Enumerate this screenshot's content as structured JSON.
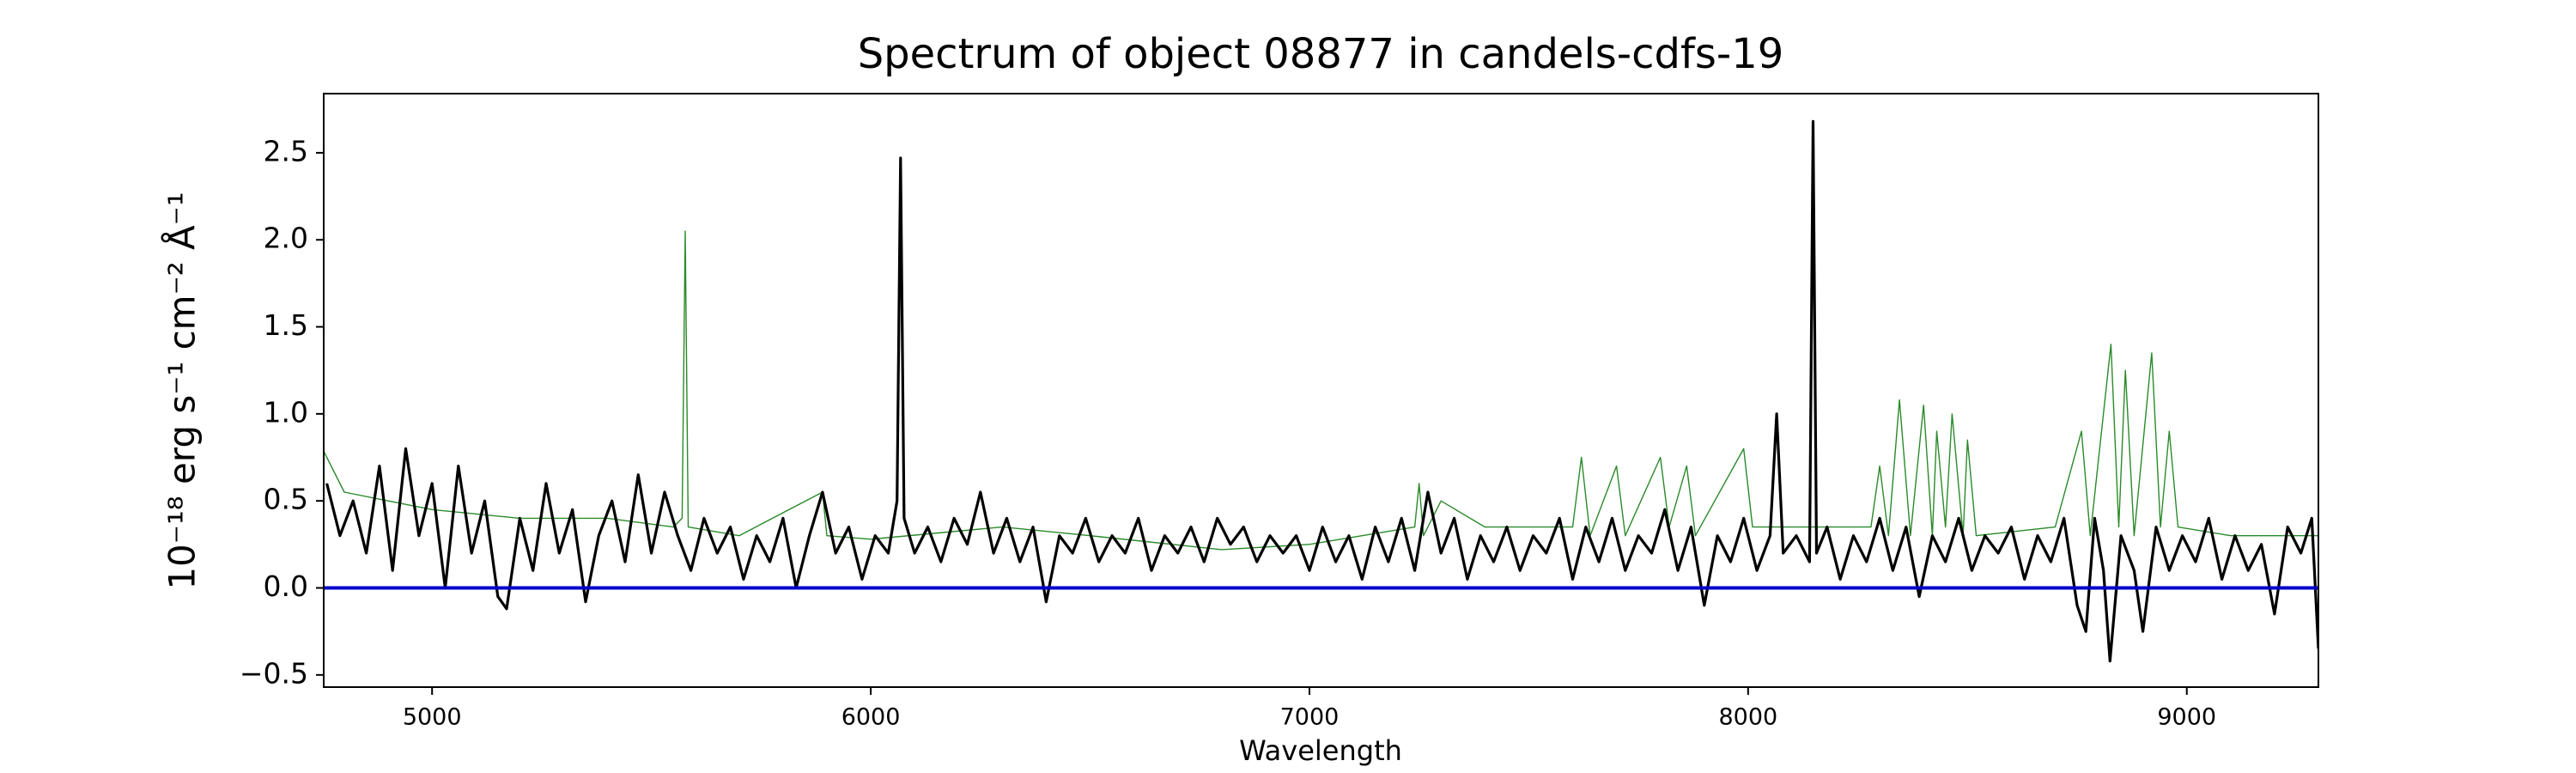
{
  "chart_data": {
    "type": "line",
    "title": "Spectrum of object 08877 in candels-cdfs-19",
    "x_label": "Wavelength",
    "y_label": "10⁻¹⁸ erg s⁻¹ cm⁻² Å⁻¹",
    "xlim": [
      4753,
      9300
    ],
    "ylim": [
      -0.57,
      2.84
    ],
    "xticks": [
      5000,
      6000,
      7000,
      8000,
      9000
    ],
    "yticks": [
      {
        "value": -0.5,
        "label": "−0.5"
      },
      {
        "value": 0,
        "label": "0.0"
      },
      0.5,
      {
        "value": 1,
        "label": "1.0"
      },
      1.5,
      {
        "value": 2,
        "label": "2.0"
      },
      2.5
    ],
    "reference_line": {
      "value": 0,
      "color": "#0000cc"
    },
    "series": [
      {
        "color": "#2a8a2a",
        "x": [
          4750,
          4800,
          4900,
          5000,
          5200,
          5400,
          5550,
          5570,
          5577,
          5584,
          5700,
          5890,
          5900,
          6000,
          6300,
          6500,
          6800,
          7000,
          7240,
          7250,
          7260,
          7300,
          7400,
          7600,
          7620,
          7640,
          7700,
          7720,
          7800,
          7820,
          7860,
          7880,
          7990,
          8010,
          8280,
          8300,
          8320,
          8345,
          8370,
          8400,
          8420,
          8430,
          8450,
          8465,
          8490,
          8500,
          8520,
          8700,
          8760,
          8780,
          8827,
          8845,
          8860,
          8880,
          8920,
          8940,
          8960,
          8980,
          9100,
          9300
        ],
        "values": [
          0.8,
          0.55,
          0.5,
          0.45,
          0.4,
          0.4,
          0.35,
          0.4,
          2.05,
          0.35,
          0.3,
          0.55,
          0.3,
          0.28,
          0.35,
          0.3,
          0.22,
          0.25,
          0.35,
          0.6,
          0.3,
          0.5,
          0.35,
          0.35,
          0.75,
          0.3,
          0.7,
          0.3,
          0.75,
          0.35,
          0.7,
          0.3,
          0.8,
          0.35,
          0.35,
          0.7,
          0.3,
          1.08,
          0.3,
          1.05,
          0.3,
          0.9,
          0.35,
          1.0,
          0.3,
          0.85,
          0.3,
          0.35,
          0.9,
          0.3,
          1.4,
          0.35,
          1.25,
          0.3,
          1.35,
          0.35,
          0.9,
          0.35,
          0.3,
          0.3
        ]
      },
      {
        "color": "#000000",
        "x": [
          4760,
          4790,
          4820,
          4850,
          4880,
          4910,
          4940,
          4970,
          5000,
          5030,
          5060,
          5090,
          5120,
          5150,
          5170,
          5200,
          5230,
          5260,
          5290,
          5320,
          5350,
          5380,
          5410,
          5440,
          5470,
          5500,
          5530,
          5560,
          5590,
          5620,
          5650,
          5680,
          5710,
          5740,
          5770,
          5800,
          5830,
          5860,
          5890,
          5920,
          5950,
          5980,
          6010,
          6040,
          6060,
          6068,
          6076,
          6100,
          6130,
          6160,
          6190,
          6220,
          6250,
          6280,
          6310,
          6340,
          6370,
          6400,
          6430,
          6460,
          6490,
          6520,
          6550,
          6580,
          6610,
          6640,
          6670,
          6700,
          6730,
          6760,
          6790,
          6820,
          6850,
          6880,
          6910,
          6940,
          6970,
          7000,
          7030,
          7060,
          7090,
          7120,
          7150,
          7180,
          7210,
          7240,
          7270,
          7300,
          7330,
          7360,
          7390,
          7420,
          7450,
          7480,
          7510,
          7540,
          7570,
          7600,
          7630,
          7660,
          7690,
          7720,
          7750,
          7780,
          7810,
          7840,
          7870,
          7900,
          7930,
          7960,
          7990,
          8020,
          8050,
          8065,
          8080,
          8110,
          8140,
          8148,
          8156,
          8180,
          8210,
          8240,
          8270,
          8300,
          8330,
          8360,
          8390,
          8420,
          8450,
          8480,
          8510,
          8540,
          8570,
          8600,
          8630,
          8660,
          8690,
          8720,
          8750,
          8770,
          8790,
          8810,
          8825,
          8850,
          8880,
          8900,
          8930,
          8960,
          8990,
          9020,
          9050,
          9080,
          9110,
          9140,
          9170,
          9200,
          9230,
          9260,
          9285,
          9300
        ],
        "values": [
          0.6,
          0.3,
          0.5,
          0.2,
          0.7,
          0.1,
          0.8,
          0.3,
          0.6,
          0.0,
          0.7,
          0.2,
          0.5,
          -0.05,
          -0.12,
          0.4,
          0.1,
          0.6,
          0.2,
          0.45,
          -0.08,
          0.3,
          0.5,
          0.15,
          0.65,
          0.2,
          0.55,
          0.3,
          0.1,
          0.4,
          0.2,
          0.35,
          0.05,
          0.3,
          0.15,
          0.4,
          0.0,
          0.3,
          0.55,
          0.2,
          0.35,
          0.05,
          0.3,
          0.2,
          0.5,
          2.47,
          0.4,
          0.2,
          0.35,
          0.15,
          0.4,
          0.25,
          0.55,
          0.2,
          0.4,
          0.15,
          0.35,
          -0.08,
          0.3,
          0.2,
          0.4,
          0.15,
          0.3,
          0.2,
          0.4,
          0.1,
          0.3,
          0.2,
          0.35,
          0.15,
          0.4,
          0.25,
          0.35,
          0.15,
          0.3,
          0.2,
          0.3,
          0.1,
          0.35,
          0.15,
          0.3,
          0.05,
          0.35,
          0.15,
          0.4,
          0.1,
          0.55,
          0.2,
          0.4,
          0.05,
          0.3,
          0.15,
          0.35,
          0.1,
          0.3,
          0.2,
          0.4,
          0.05,
          0.35,
          0.15,
          0.4,
          0.1,
          0.3,
          0.2,
          0.45,
          0.1,
          0.35,
          -0.1,
          0.3,
          0.15,
          0.4,
          0.1,
          0.3,
          1.0,
          0.2,
          0.3,
          0.15,
          2.68,
          0.2,
          0.35,
          0.05,
          0.3,
          0.15,
          0.4,
          0.1,
          0.35,
          -0.05,
          0.3,
          0.15,
          0.4,
          0.1,
          0.3,
          0.2,
          0.35,
          0.05,
          0.3,
          0.15,
          0.4,
          -0.1,
          -0.25,
          0.4,
          0.1,
          -0.42,
          0.3,
          0.1,
          -0.25,
          0.35,
          0.1,
          0.3,
          0.15,
          0.4,
          0.05,
          0.3,
          0.1,
          0.25,
          -0.15,
          0.35,
          0.2,
          0.4,
          -0.35
        ]
      }
    ]
  }
}
